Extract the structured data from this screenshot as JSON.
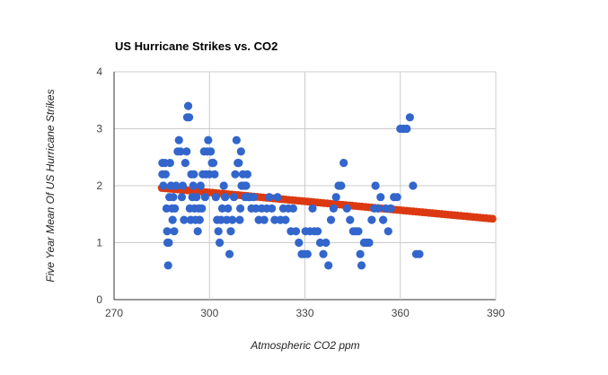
{
  "chart_data": {
    "type": "scatter",
    "title": "US Hurricane Strikes vs. CO2",
    "xlabel": "Atmospheric CO2 ppm",
    "ylabel": "Five Year Mean Of US Hurricane Strikes",
    "xlim": [
      270,
      390
    ],
    "ylim": [
      0,
      4
    ],
    "x_ticks": [
      "270",
      "300",
      "330",
      "360",
      "390"
    ],
    "y_ticks": [
      "0",
      "1",
      "2",
      "3",
      "4"
    ],
    "grid": true,
    "legend": "none",
    "series": [
      {
        "color": "#3366cc",
        "points": [
          [
            285.2,
            2.4
          ],
          [
            285.2,
            2.2
          ],
          [
            285.5,
            2.0
          ],
          [
            286.0,
            2.4
          ],
          [
            286.2,
            2.2
          ],
          [
            286.5,
            1.6
          ],
          [
            286.7,
            1.2
          ],
          [
            286.8,
            1.0
          ],
          [
            287.0,
            0.6
          ],
          [
            287.2,
            1.0
          ],
          [
            287.4,
            1.8
          ],
          [
            287.6,
            2.4
          ],
          [
            287.9,
            2.0
          ],
          [
            288.2,
            1.6
          ],
          [
            288.4,
            1.4
          ],
          [
            288.6,
            1.8
          ],
          [
            288.9,
            1.2
          ],
          [
            289.1,
            1.6
          ],
          [
            289.5,
            2.0
          ],
          [
            290.0,
            2.6
          ],
          [
            290.4,
            2.8
          ],
          [
            290.9,
            2.6
          ],
          [
            291.3,
            1.8
          ],
          [
            291.6,
            2.0
          ],
          [
            292.0,
            1.4
          ],
          [
            292.4,
            2.4
          ],
          [
            292.8,
            2.6
          ],
          [
            293.0,
            3.2
          ],
          [
            293.3,
            3.4
          ],
          [
            293.6,
            3.2
          ],
          [
            293.8,
            1.6
          ],
          [
            294.1,
            1.4
          ],
          [
            294.3,
            2.2
          ],
          [
            294.6,
            1.8
          ],
          [
            294.9,
            2.0
          ],
          [
            295.1,
            2.2
          ],
          [
            295.3,
            1.6
          ],
          [
            295.6,
            1.4
          ],
          [
            295.9,
            1.8
          ],
          [
            296.3,
            1.2
          ],
          [
            296.6,
            1.6
          ],
          [
            296.9,
            1.4
          ],
          [
            297.2,
            2.0
          ],
          [
            297.6,
            1.6
          ],
          [
            297.9,
            2.2
          ],
          [
            298.3,
            2.6
          ],
          [
            298.6,
            1.8
          ],
          [
            298.9,
            2.2
          ],
          [
            299.3,
            2.6
          ],
          [
            299.6,
            2.8
          ],
          [
            300.0,
            2.2
          ],
          [
            300.4,
            2.6
          ],
          [
            300.8,
            2.4
          ],
          [
            301.2,
            2.4
          ],
          [
            301.6,
            2.2
          ],
          [
            302.0,
            1.8
          ],
          [
            302.4,
            1.4
          ],
          [
            302.8,
            1.2
          ],
          [
            303.2,
            1.0
          ],
          [
            303.6,
            1.4
          ],
          [
            304.0,
            1.6
          ],
          [
            304.5,
            2.0
          ],
          [
            304.9,
            1.8
          ],
          [
            305.4,
            1.4
          ],
          [
            305.8,
            1.6
          ],
          [
            306.3,
            0.8
          ],
          [
            306.7,
            1.2
          ],
          [
            307.2,
            1.4
          ],
          [
            307.7,
            1.8
          ],
          [
            308.1,
            2.2
          ],
          [
            308.5,
            2.8
          ],
          [
            308.9,
            2.4
          ],
          [
            309.2,
            2.4
          ],
          [
            309.5,
            1.4
          ],
          [
            309.7,
            1.6
          ],
          [
            309.9,
            2.6
          ],
          [
            310.1,
            2.0
          ],
          [
            310.5,
            2.2
          ],
          [
            310.9,
            2.0
          ],
          [
            311.2,
            1.8
          ],
          [
            311.5,
            2.0
          ],
          [
            311.9,
            2.2
          ],
          [
            312.3,
            1.8
          ],
          [
            312.7,
            1.8
          ],
          [
            313.2,
            1.6
          ],
          [
            313.9,
            1.8
          ],
          [
            314.6,
            1.6
          ],
          [
            315.5,
            1.4
          ],
          [
            316.4,
            1.6
          ],
          [
            317.2,
            1.4
          ],
          [
            318.0,
            1.6
          ],
          [
            318.8,
            1.8
          ],
          [
            319.6,
            1.6
          ],
          [
            320.5,
            1.4
          ],
          [
            321.4,
            1.8
          ],
          [
            322.3,
            1.4
          ],
          [
            323.2,
            1.6
          ],
          [
            323.9,
            1.4
          ],
          [
            324.8,
            1.6
          ],
          [
            325.6,
            1.2
          ],
          [
            326.3,
            1.6
          ],
          [
            327.2,
            1.2
          ],
          [
            328.1,
            1.0
          ],
          [
            329.0,
            0.8
          ],
          [
            329.6,
            0.8
          ],
          [
            330.2,
            1.2
          ],
          [
            330.8,
            0.8
          ],
          [
            331.6,
            1.2
          ],
          [
            332.4,
            1.6
          ],
          [
            333.0,
            1.2
          ],
          [
            334.0,
            1.2
          ],
          [
            334.8,
            1.0
          ],
          [
            335.8,
            0.8
          ],
          [
            336.6,
            1.0
          ],
          [
            337.4,
            0.6
          ],
          [
            338.2,
            1.4
          ],
          [
            339.0,
            1.6
          ],
          [
            339.8,
            1.8
          ],
          [
            340.6,
            2.0
          ],
          [
            341.4,
            2.0
          ],
          [
            342.2,
            2.4
          ],
          [
            343.2,
            1.6
          ],
          [
            344.2,
            1.4
          ],
          [
            345.2,
            1.2
          ],
          [
            346.0,
            1.2
          ],
          [
            346.8,
            1.2
          ],
          [
            347.4,
            0.8
          ],
          [
            347.8,
            0.6
          ],
          [
            348.6,
            1.0
          ],
          [
            349.4,
            1.0
          ],
          [
            350.2,
            1.0
          ],
          [
            351.0,
            1.4
          ],
          [
            351.8,
            1.6
          ],
          [
            352.2,
            2.0
          ],
          [
            353.0,
            1.6
          ],
          [
            353.8,
            1.8
          ],
          [
            354.6,
            1.4
          ],
          [
            355.4,
            1.6
          ],
          [
            356.2,
            1.2
          ],
          [
            357.0,
            1.6
          ],
          [
            358.0,
            1.8
          ],
          [
            359.0,
            1.8
          ],
          [
            360.0,
            3.0
          ],
          [
            361.0,
            3.0
          ],
          [
            362.0,
            3.0
          ],
          [
            363.0,
            3.2
          ],
          [
            364.0,
            2.0
          ],
          [
            365.0,
            0.8
          ],
          [
            366.0,
            0.8
          ]
        ]
      },
      {
        "color": "#dc3912",
        "trend": [
          [
            285,
            1.96
          ],
          [
            389,
            1.42
          ]
        ]
      }
    ]
  }
}
